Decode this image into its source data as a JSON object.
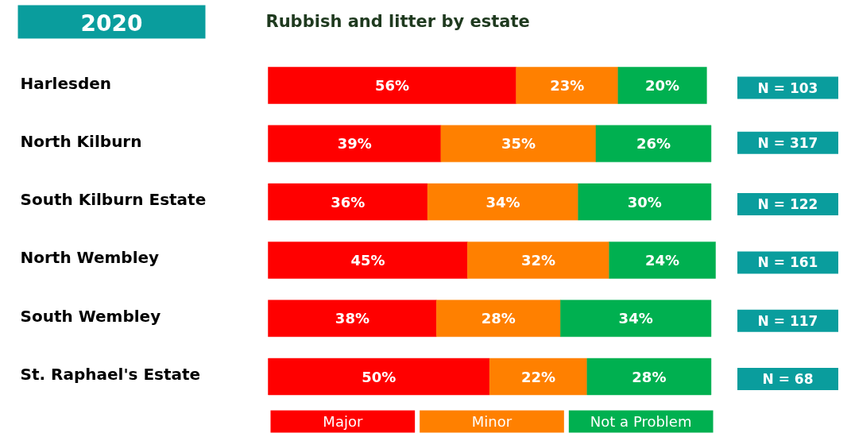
{
  "chart_data": {
    "type": "bar",
    "orientation": "horizontal",
    "stacked": true,
    "title": "Rubbish and litter by estate",
    "subtitle": "2020",
    "categories": [
      "Harlesden",
      "North Kilburn",
      "South Kilburn Estate",
      "North Wembley",
      "South Wembley",
      "St. Raphael's Estate"
    ],
    "series": [
      {
        "name": "Major",
        "color": "#ff0000",
        "values": [
          56,
          39,
          36,
          45,
          38,
          50
        ],
        "value_labels": [
          "56%",
          "39%",
          "36%",
          "45%",
          "38%",
          "50%"
        ]
      },
      {
        "name": "Minor",
        "color": "#ff8000",
        "values": [
          23,
          35,
          34,
          32,
          28,
          22
        ],
        "value_labels": [
          "23%",
          "35%",
          "34%",
          "32%",
          "28%",
          "22%"
        ]
      },
      {
        "name": "Not a Problem",
        "color": "#00b050",
        "values": [
          20,
          26,
          30,
          24,
          34,
          28
        ],
        "value_labels": [
          "20%",
          "26%",
          "30%",
          "24%",
          "34%",
          "28%"
        ]
      }
    ],
    "xlim": [
      0,
      101
    ],
    "grid": false,
    "tick_labels": false,
    "legend": "bottom",
    "annotations": [
      "N = 103",
      "N = 317",
      "N = 122",
      "N = 161",
      "N = 117",
      "N = 68"
    ]
  }
}
